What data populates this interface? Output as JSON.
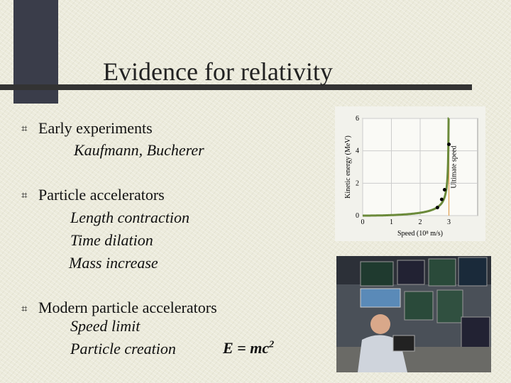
{
  "title": "Evidence for relativity",
  "bullets": [
    {
      "label": "Early experiments",
      "subs": [
        "Kaufmann, Bucherer"
      ]
    },
    {
      "label": "Particle accelerators",
      "subs": [
        "Length contraction",
        "Time dilation",
        "Mass increase"
      ]
    },
    {
      "label": "Modern particle accelerators",
      "subs": [
        "Speed limit",
        "Particle creation"
      ]
    }
  ],
  "equation": {
    "lhs": "E = mc",
    "exp": "2"
  },
  "bullet_icon": "hash-bullet-icon",
  "colors": {
    "curve": "#6b8a3a",
    "limit_line": "#e0a050",
    "decor": "#3a3d4a"
  },
  "chart_data": {
    "type": "line",
    "xlabel": "Speed (10⁸ m/s)",
    "ylabel": "Kinetic energy (MeV)",
    "xlim": [
      0,
      4
    ],
    "ylim": [
      0,
      6
    ],
    "xticks": [
      "0",
      "1",
      "2",
      "3"
    ],
    "yticks": [
      "0",
      "2",
      "4",
      "6"
    ],
    "grid": true,
    "annotation": "Ultimate speed",
    "limit_x": 3,
    "points": [
      {
        "x": 2.6,
        "y": 0.5
      },
      {
        "x": 2.75,
        "y": 1.0
      },
      {
        "x": 2.85,
        "y": 1.6
      },
      {
        "x": 3.0,
        "y": 4.4
      }
    ]
  }
}
